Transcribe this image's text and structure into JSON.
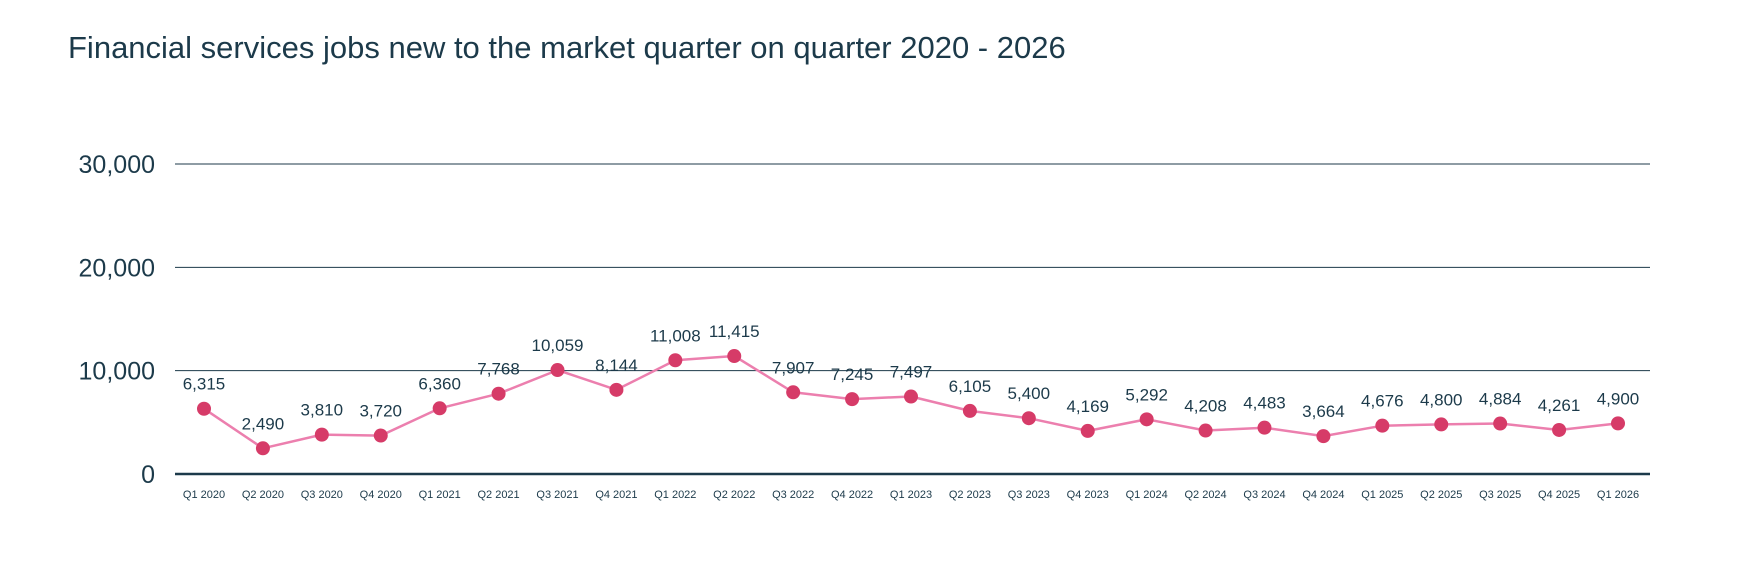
{
  "chart_data": {
    "type": "line",
    "title": "Financial services jobs new to the market quarter on quarter 2020 - 2026",
    "xlabel": "",
    "ylabel": "",
    "ylim": [
      0,
      30000
    ],
    "yticks": [
      0,
      10000,
      20000,
      30000
    ],
    "ytick_labels": [
      "0",
      "10,000",
      "20,000",
      "30,000"
    ],
    "grid": true,
    "legend": "none",
    "colors": {
      "line": "#ec7fae",
      "marker": "#d63b68",
      "grid": "#1c3a4a",
      "text": "#1c3a4a"
    },
    "categories": [
      "Q1 2020",
      "Q2 2020",
      "Q3 2020",
      "Q4 2020",
      "Q1 2021",
      "Q2 2021",
      "Q3 2021",
      "Q4 2021",
      "Q1 2022",
      "Q2 2022",
      "Q3 2022",
      "Q4 2022",
      "Q1 2023",
      "Q2 2023",
      "Q3 2023",
      "Q4 2023",
      "Q1 2024",
      "Q2 2024",
      "Q3 2024",
      "Q4 2024",
      "Q1 2025",
      "Q2 2025",
      "Q3 2025",
      "Q4 2025",
      "Q1 2026"
    ],
    "values": [
      6315,
      2490,
      3810,
      3720,
      6360,
      7768,
      10059,
      8144,
      11008,
      11415,
      7907,
      7245,
      7497,
      6105,
      5400,
      4169,
      5292,
      4208,
      4483,
      3664,
      4676,
      4800,
      4884,
      4261,
      4900
    ],
    "data_labels": [
      "6,315",
      "2,490",
      "3,810",
      "3,720",
      "6,360",
      "7,768",
      "10,059",
      "8,144",
      "11,008",
      "11,415",
      "7,907",
      "7,245",
      "7,497",
      "6,105",
      "5,400",
      "4,169",
      "5,292",
      "4,208",
      "4,483",
      "3,664",
      "4,676",
      "4,800",
      "4,884",
      "4,261",
      "4,900"
    ]
  }
}
